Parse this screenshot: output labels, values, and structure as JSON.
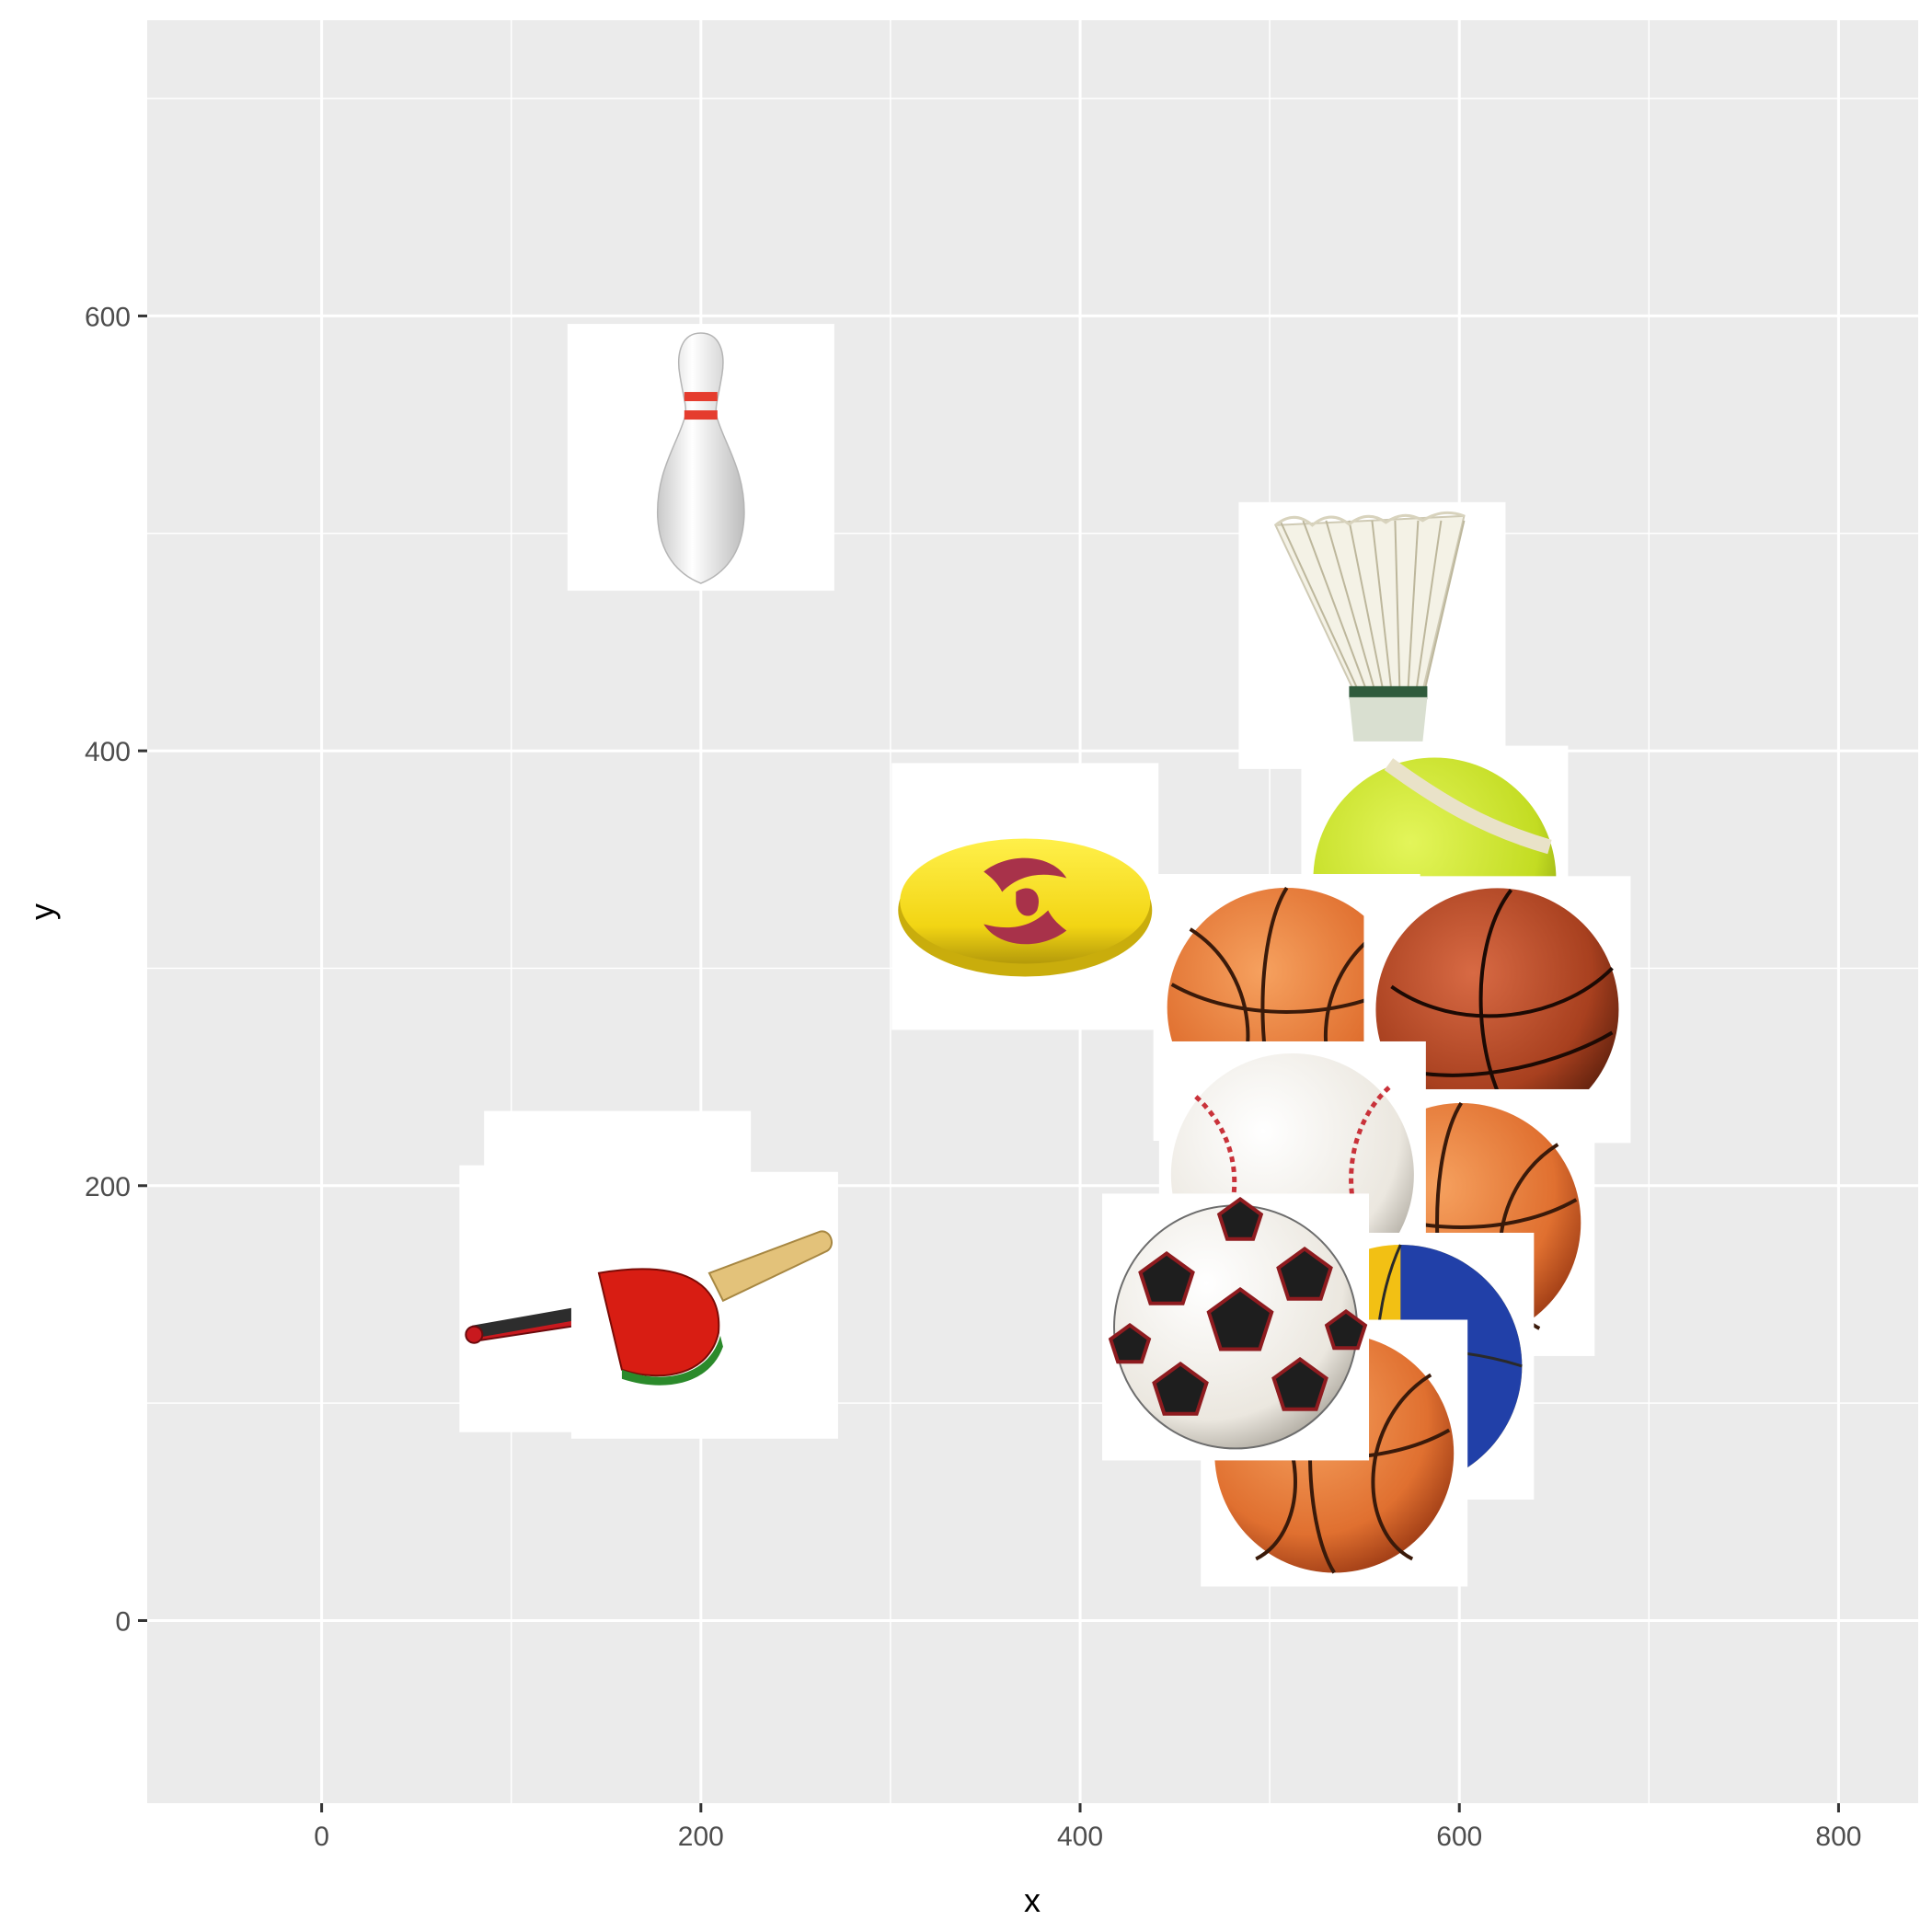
{
  "chart_data": {
    "type": "scatter",
    "marker_style": "sports equipment images",
    "title": "",
    "xlabel": "x",
    "ylabel": "y",
    "xlim": [
      -92,
      842
    ],
    "ylim": [
      -84,
      736
    ],
    "x_ticks": [
      0,
      200,
      400,
      600,
      800
    ],
    "y_ticks": [
      0,
      200,
      400,
      600
    ],
    "grid": true,
    "legend": "none",
    "points": [
      {
        "item": "bowling pin",
        "icon": "bowling-pin-icon",
        "x": 200,
        "y": 535
      },
      {
        "item": "shuttlecock",
        "icon": "shuttlecock-icon",
        "x": 554,
        "y": 453
      },
      {
        "item": "frisbee",
        "icon": "frisbee-icon",
        "x": 371,
        "y": 333
      },
      {
        "item": "tennis ball",
        "icon": "tennis-ball-icon",
        "x": 587,
        "y": 341
      },
      {
        "item": "basketball",
        "icon": "basketball-icon",
        "x": 509,
        "y": 282
      },
      {
        "item": "basketball",
        "icon": "basketball-icon",
        "x": 620,
        "y": 281
      },
      {
        "item": "basketball",
        "icon": "basketball-icon",
        "x": 601,
        "y": 183
      },
      {
        "item": "baseball",
        "icon": "baseball-icon",
        "x": 512,
        "y": 205
      },
      {
        "item": "volleyball",
        "icon": "volleyball-icon",
        "x": 569,
        "y": 117
      },
      {
        "item": "basketball",
        "icon": "basketball-icon",
        "x": 534,
        "y": 77
      },
      {
        "item": "soccer ball",
        "icon": "soccer-ball-icon",
        "x": 482,
        "y": 135
      },
      {
        "item": "baseball bat",
        "icon": "baseball-bat-icon",
        "x": 156,
        "y": 173
      },
      {
        "item": "baseball bat",
        "icon": "baseball-bat-icon",
        "x": 143,
        "y": 148
      },
      {
        "item": "ping pong paddle",
        "icon": "ping-pong-paddle-icon",
        "x": 202,
        "y": 145
      }
    ],
    "colors": {
      "panel": "#ebebeb",
      "grid_major": "#ffffff",
      "tick_text": "#4d4d4d",
      "tick_mark": "#333333",
      "basketball": "#e07030",
      "basketball_dark": "#b54a1e",
      "tennis": "#c9e22a",
      "frisbee": "#f2d514",
      "frisbee_logo": "#a8324a",
      "bat_red": "#c8191e",
      "paddle_red": "#d81d13",
      "paddle_handle": "#e3c27a",
      "volley_blue": "#2140a8",
      "volley_yellow": "#f2c014",
      "volley_red": "#d0242b"
    }
  }
}
